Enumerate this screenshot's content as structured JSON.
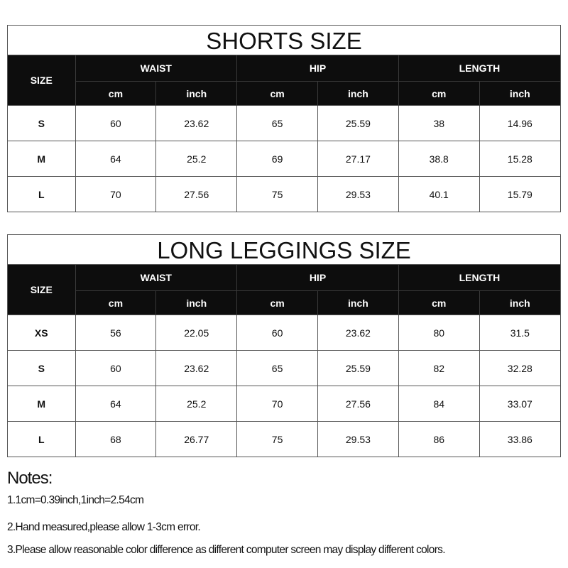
{
  "tables": [
    {
      "title": "SHORTS SIZE",
      "size_label": "SIZE",
      "groups": [
        "WAIST",
        "HIP",
        "LENGTH"
      ],
      "units": [
        "cm",
        "inch",
        "cm",
        "inch",
        "cm",
        "inch"
      ],
      "rows": [
        [
          "S",
          "60",
          "23.62",
          "65",
          "25.59",
          "38",
          "14.96"
        ],
        [
          "M",
          "64",
          "25.2",
          "69",
          "27.17",
          "38.8",
          "15.28"
        ],
        [
          "L",
          "70",
          "27.56",
          "75",
          "29.53",
          "40.1",
          "15.79"
        ]
      ]
    },
    {
      "title": "LONG LEGGINGS SIZE",
      "size_label": "SIZE",
      "groups": [
        "WAIST",
        "HIP",
        "LENGTH"
      ],
      "units": [
        "cm",
        "inch",
        "cm",
        "inch",
        "cm",
        "inch"
      ],
      "rows": [
        [
          "XS",
          "56",
          "22.05",
          "60",
          "23.62",
          "80",
          "31.5"
        ],
        [
          "S",
          "60",
          "23.62",
          "65",
          "25.59",
          "82",
          "32.28"
        ],
        [
          "M",
          "64",
          "25.2",
          "70",
          "27.56",
          "84",
          "33.07"
        ],
        [
          "L",
          "68",
          "26.77",
          "75",
          "29.53",
          "86",
          "33.86"
        ]
      ]
    }
  ],
  "notes": {
    "title": "Notes:",
    "items": [
      "1.1cm=0.39inch,1inch=2.54cm",
      "2.Hand measured,please allow 1-3cm error.",
      "3.Please allow reasonable color difference as different computer screen may display different colors."
    ]
  }
}
